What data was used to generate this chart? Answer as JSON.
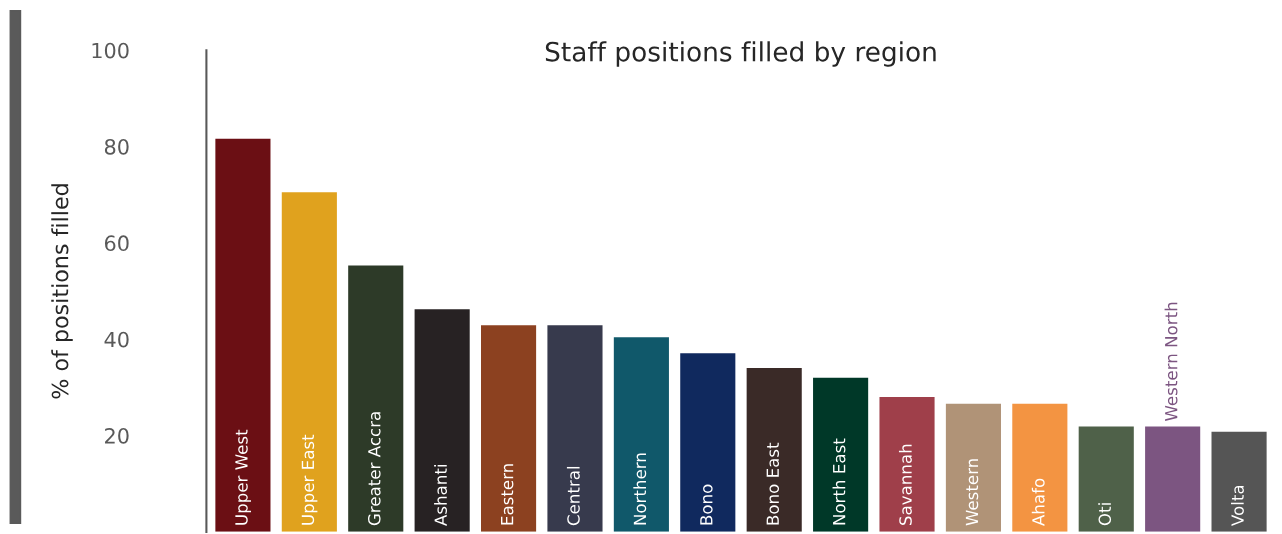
{
  "chart_data": {
    "type": "bar",
    "title": "Staff positions filled by region",
    "ylabel": "% of positions filled",
    "categories": [
      "Upper West",
      "Upper East",
      "Greater Accra",
      "Ashanti",
      "Eastern",
      "Central",
      "Northern",
      "Bono",
      "Bono East",
      "North East",
      "Savannah",
      "Western",
      "Ahafo",
      "Oti",
      "Western North",
      "Volta"
    ],
    "values": [
      81.6,
      70.5,
      55.3,
      46.2,
      42.9,
      42.9,
      40.4,
      37.1,
      34.0,
      32.0,
      28.0,
      26.6,
      26.6,
      21.9,
      21.9,
      20.8
    ],
    "colors": [
      "#6b0f14",
      "#e0a21e",
      "#2d3a28",
      "#272223",
      "#8c4120",
      "#373a4d",
      "#10586a",
      "#10295e",
      "#3a2a27",
      "#003828",
      "#9f3f4a",
      "#b09377",
      "#f39442",
      "#4f6149",
      "#7c5581",
      "#555555"
    ],
    "ylim": [
      0,
      100
    ],
    "yticks": [
      20,
      40,
      60,
      80,
      100
    ],
    "grid": false,
    "legend": false
  }
}
